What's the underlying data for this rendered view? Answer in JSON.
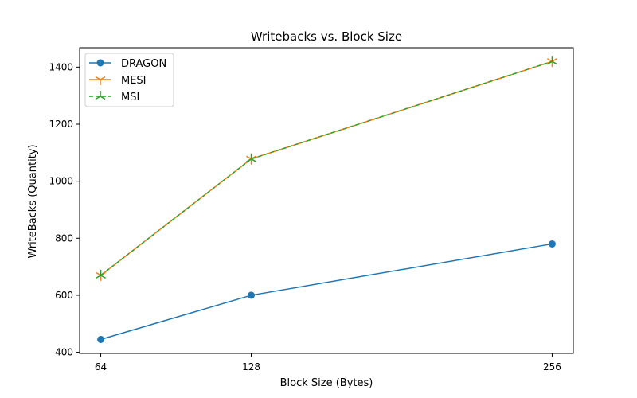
{
  "chart_data": {
    "type": "line",
    "title": "Writebacks vs. Block Size",
    "xlabel": "Block Size (Bytes)",
    "ylabel": "WriteBacks (Quantity)",
    "x": [
      64,
      128,
      256
    ],
    "xticks": [
      "64",
      "128",
      "256"
    ],
    "xlim": [
      55,
      265
    ],
    "yticks": [
      "400",
      "600",
      "800",
      "1000",
      "1200",
      "1400"
    ],
    "ytick_values": [
      400,
      600,
      800,
      1000,
      1200,
      1400
    ],
    "ylim": [
      396,
      1468
    ],
    "grid": false,
    "legend_position": "top-left",
    "series": [
      {
        "name": "DRAGON",
        "values": [
          445,
          600,
          780
        ],
        "color": "#1f77b4",
        "marker": "circle",
        "linestyle": "solid"
      },
      {
        "name": "MESI",
        "values": [
          670,
          1078,
          1420
        ],
        "color": "#ff7f0e",
        "marker": "tri_down",
        "linestyle": "solid"
      },
      {
        "name": "MSI",
        "values": [
          670,
          1078,
          1420
        ],
        "color": "#2ca02c",
        "marker": "tri_up",
        "linestyle": "dashed"
      }
    ]
  }
}
